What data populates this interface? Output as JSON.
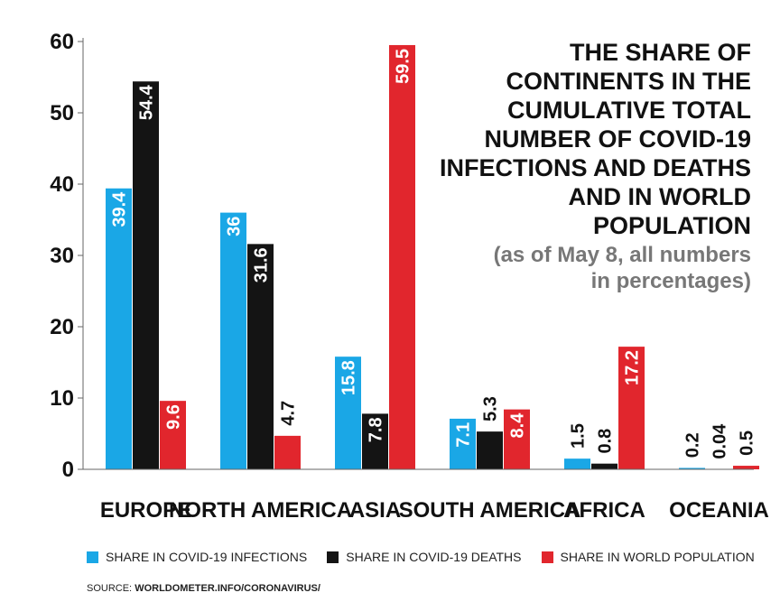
{
  "chart_data": {
    "type": "bar",
    "title": "THE SHARE OF\nCONTINENTS IN THE\nCUMULATIVE TOTAL\nNUMBER OF COVID-19\nINFECTIONS AND DEATHS\nAND IN WORLD\nPOPULATION",
    "subtitle": "(as of May 8, all numbers\nin percentages)",
    "categories": [
      "EUROPE",
      "NORTH AMERICA",
      "ASIA",
      "SOUTH AMERICA",
      "AFRICA",
      "OCEANIA"
    ],
    "series": [
      {
        "name": "SHARE IN COVID-19 INFECTIONS",
        "color": "#1aa7e6",
        "values": [
          39.4,
          36,
          15.8,
          7.1,
          1.5,
          0.2
        ]
      },
      {
        "name": "SHARE IN COVID-19 DEATHS",
        "color": "#141414",
        "values": [
          54.4,
          31.6,
          7.8,
          5.3,
          0.8,
          0.04
        ]
      },
      {
        "name": "SHARE IN WORLD POPULATION",
        "color": "#e1262d",
        "values": [
          9.6,
          4.7,
          59.5,
          8.4,
          17.2,
          0.5
        ]
      }
    ],
    "ylim": [
      0,
      60
    ],
    "yticks": [
      0,
      10,
      20,
      30,
      40,
      50,
      60
    ],
    "xlabel": "",
    "ylabel": "",
    "grid": false,
    "legend_position": "bottom"
  },
  "source": {
    "prefix": "SOURCE: ",
    "text": "WORLDOMETER.INFO/CORONAVIRUS/"
  }
}
